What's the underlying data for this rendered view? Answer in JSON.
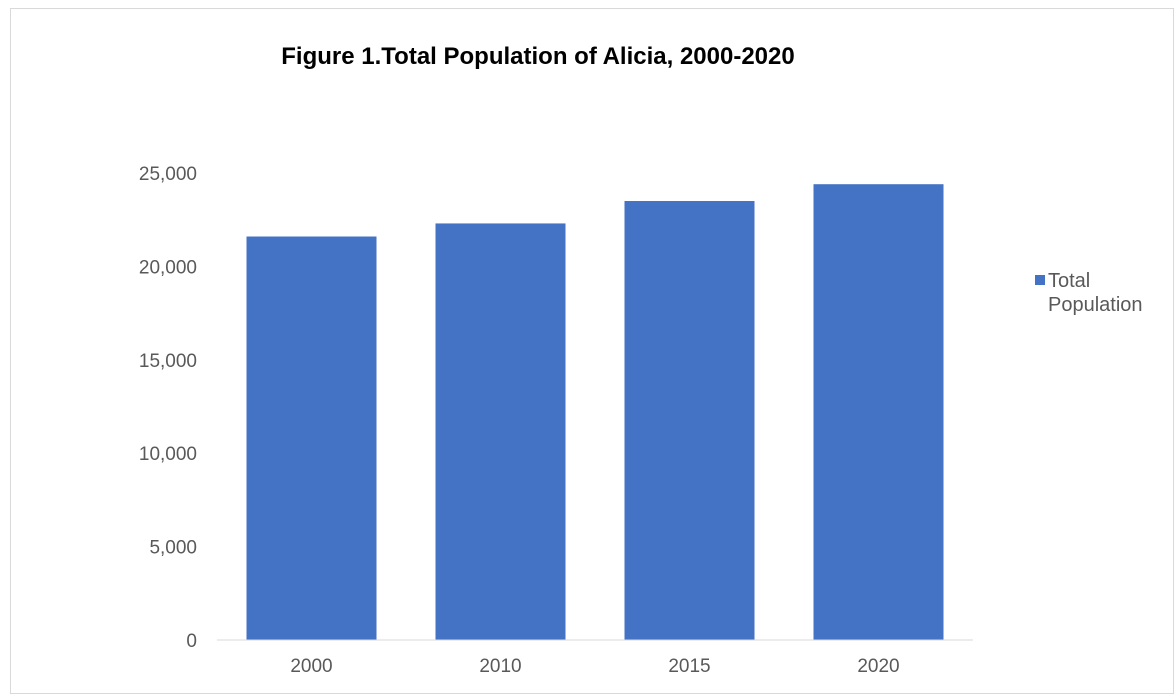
{
  "chart_data": {
    "type": "bar",
    "title": "Figure 1.Total Population of Alicia, 2000-2020",
    "categories": [
      "2000",
      "2010",
      "2015",
      "2020"
    ],
    "series": [
      {
        "name": "Total Population",
        "values": [
          21600,
          22300,
          23500,
          24400
        ],
        "color": "#4472C4"
      }
    ],
    "ylim": [
      0,
      25000
    ],
    "yticks": [
      0,
      5000,
      10000,
      15000,
      20000,
      25000
    ],
    "ytick_labels": [
      "0",
      "5,000",
      "10,000",
      "15,000",
      "20,000",
      "25,000"
    ],
    "grid": false,
    "legend": "right"
  }
}
